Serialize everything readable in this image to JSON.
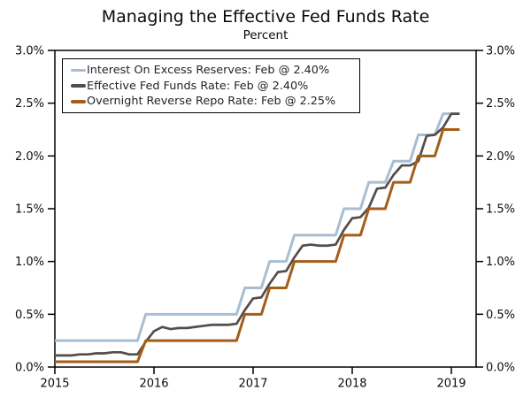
{
  "title": "Managing the Effective Fed Funds Rate",
  "subtitle": "Percent",
  "chart_data": {
    "type": "line",
    "title": "Managing the Effective Fed Funds Rate",
    "ylabel_note": "Percent",
    "x_monthly_start": "2015-01",
    "x_monthly_end": "2019-02",
    "xlim": [
      2015.0,
      2019.25
    ],
    "ylim": [
      0.0,
      3.0
    ],
    "grid": false,
    "legend_position": "top-left",
    "x_tick_labels": [
      "2015",
      "2016",
      "2017",
      "2018",
      "2019"
    ],
    "x_ticks": [
      2015,
      2016,
      2017,
      2018,
      2019
    ],
    "y_ticks": [
      0.0,
      0.5,
      1.0,
      1.5,
      2.0,
      2.5,
      3.0
    ],
    "y_tick_labels_left": [
      "0.0%",
      "0.5%",
      "1.0%",
      "1.5%",
      "2.0%",
      "2.5%",
      "3.0%"
    ],
    "y_tick_labels_right": [
      "0.0%",
      "0.5%",
      "1.0%",
      "1.5%",
      "2.0%",
      "2.5%",
      "3.0%"
    ],
    "frame_color": "#000000",
    "series": [
      {
        "key": "interest-on-excess-reserves",
        "label": "Interest On Excess Reserves: Feb @ 2.40%",
        "color": "#a7bed3",
        "values": [
          0.25,
          0.25,
          0.25,
          0.25,
          0.25,
          0.25,
          0.25,
          0.25,
          0.25,
          0.25,
          0.25,
          0.5,
          0.5,
          0.5,
          0.5,
          0.5,
          0.5,
          0.5,
          0.5,
          0.5,
          0.5,
          0.5,
          0.5,
          0.75,
          0.75,
          0.75,
          1.0,
          1.0,
          1.0,
          1.25,
          1.25,
          1.25,
          1.25,
          1.25,
          1.25,
          1.5,
          1.5,
          1.5,
          1.75,
          1.75,
          1.75,
          1.95,
          1.95,
          1.95,
          2.2,
          2.2,
          2.2,
          2.4,
          2.4,
          2.4
        ]
      },
      {
        "key": "effective-fed-funds-rate",
        "label": "Effective Fed Funds Rate: Feb @ 2.40%",
        "color": "#544d49",
        "values": [
          0.11,
          0.11,
          0.11,
          0.12,
          0.12,
          0.13,
          0.13,
          0.14,
          0.14,
          0.12,
          0.12,
          0.24,
          0.34,
          0.38,
          0.36,
          0.37,
          0.37,
          0.38,
          0.39,
          0.4,
          0.4,
          0.4,
          0.41,
          0.54,
          0.65,
          0.66,
          0.79,
          0.9,
          0.91,
          1.04,
          1.15,
          1.16,
          1.15,
          1.15,
          1.16,
          1.3,
          1.41,
          1.42,
          1.51,
          1.69,
          1.7,
          1.82,
          1.91,
          1.91,
          1.95,
          2.19,
          2.2,
          2.27,
          2.4,
          2.4
        ]
      },
      {
        "key": "overnight-reverse-repo-rate",
        "label": "Overnight Reverse Repo Rate: Feb @ 2.25%",
        "color": "#a55d17",
        "values": [
          0.05,
          0.05,
          0.05,
          0.05,
          0.05,
          0.05,
          0.05,
          0.05,
          0.05,
          0.05,
          0.05,
          0.25,
          0.25,
          0.25,
          0.25,
          0.25,
          0.25,
          0.25,
          0.25,
          0.25,
          0.25,
          0.25,
          0.25,
          0.5,
          0.5,
          0.5,
          0.75,
          0.75,
          0.75,
          1.0,
          1.0,
          1.0,
          1.0,
          1.0,
          1.0,
          1.25,
          1.25,
          1.25,
          1.5,
          1.5,
          1.5,
          1.75,
          1.75,
          1.75,
          2.0,
          2.0,
          2.0,
          2.25,
          2.25,
          2.25
        ]
      }
    ]
  }
}
